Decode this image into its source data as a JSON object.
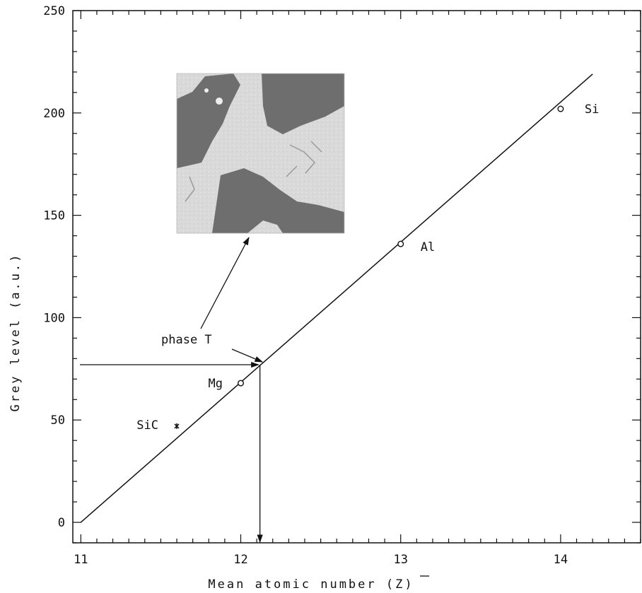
{
  "chart_data": {
    "type": "scatter",
    "xlabel": "Mean atomic number (Z)",
    "ylabel": "Grey level (a.u.)",
    "xlim": [
      10.95,
      14.5
    ],
    "ylim": [
      -10,
      250
    ],
    "x_ticks": [
      {
        "value": 11,
        "label": "11"
      },
      {
        "value": 12,
        "label": "12"
      },
      {
        "value": 13,
        "label": "13"
      },
      {
        "value": 14,
        "label": "14"
      }
    ],
    "y_ticks": [
      {
        "value": 0,
        "label": "0"
      },
      {
        "value": 50,
        "label": "50"
      },
      {
        "value": 100,
        "label": "100"
      },
      {
        "value": 150,
        "label": "150"
      },
      {
        "value": 200,
        "label": "200"
      },
      {
        "value": 250,
        "label": "250"
      }
    ],
    "points": [
      {
        "label": "Mg",
        "x": 12.0,
        "y": 68,
        "marker": "circle"
      },
      {
        "label": "Al",
        "x": 13.0,
        "y": 136,
        "marker": "circle"
      },
      {
        "label": "Si",
        "x": 14.0,
        "y": 202,
        "marker": "circle"
      },
      {
        "label": "SiC",
        "x": 11.6,
        "y": 47,
        "marker": "cross"
      }
    ],
    "fit_line": {
      "x": [
        11.0,
        14.2
      ],
      "y": [
        0,
        219
      ]
    },
    "phase_point": {
      "label": "phase T",
      "x": 12.12,
      "y": 77
    },
    "inset": "micrograph of phase T"
  }
}
